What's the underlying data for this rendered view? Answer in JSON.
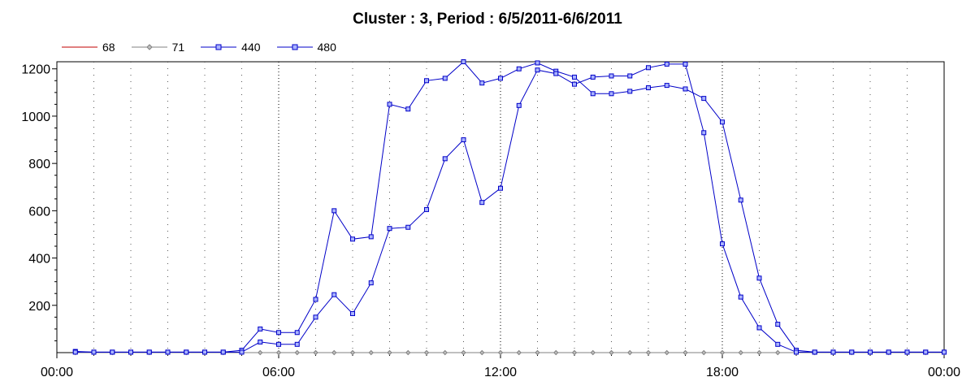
{
  "chart_data": {
    "type": "line",
    "title": "Cluster : 3, Period : 6/5/2011-6/6/2011",
    "xlabel": "",
    "ylabel": "",
    "x_unit": "hours",
    "xlim": [
      0,
      24
    ],
    "ylim": [
      0,
      1230
    ],
    "x_tick_labels": [
      "00:00",
      "06:00",
      "12:00",
      "18:00",
      "00:00"
    ],
    "x_tick_values": [
      0,
      6,
      12,
      18,
      24
    ],
    "y_ticks": [
      200,
      400,
      600,
      800,
      1000,
      1200
    ],
    "grid": true,
    "legend_position": "top-left",
    "series": [
      {
        "name": "68",
        "color": "#c00000",
        "marker": "none",
        "x": [
          0.5,
          1.0,
          1.5,
          2.0,
          2.5,
          3.0,
          3.5,
          4.0,
          4.5,
          5.0,
          5.5,
          6.0,
          6.5,
          7.0,
          7.5,
          8.0,
          8.5,
          9.0,
          9.5,
          10.0,
          10.5,
          11.0,
          11.5,
          12.0,
          12.5,
          13.0,
          13.5,
          14.0,
          14.5,
          15.0,
          15.5,
          16.0,
          16.5,
          17.0,
          17.5,
          18.0,
          18.5,
          19.0,
          19.5,
          20.0,
          20.5,
          21.0,
          21.5,
          22.0,
          22.5,
          23.0,
          23.5,
          24.0
        ],
        "y": [
          0,
          0,
          0,
          0,
          0,
          0,
          0,
          0,
          0,
          0,
          0,
          0,
          0,
          0,
          0,
          0,
          0,
          0,
          0,
          0,
          0,
          0,
          0,
          0,
          0,
          0,
          0,
          0,
          0,
          0,
          0,
          0,
          0,
          0,
          0,
          0,
          0,
          0,
          0,
          0,
          0,
          0,
          0,
          0,
          0,
          0,
          0,
          0
        ]
      },
      {
        "name": "71",
        "color": "#808080",
        "marker": "diamond",
        "x": [
          0.5,
          1.0,
          1.5,
          2.0,
          2.5,
          3.0,
          3.5,
          4.0,
          4.5,
          5.0,
          5.5,
          6.0,
          6.5,
          7.0,
          7.5,
          8.0,
          8.5,
          9.0,
          9.5,
          10.0,
          10.5,
          11.0,
          11.5,
          12.0,
          12.5,
          13.0,
          13.5,
          14.0,
          14.5,
          15.0,
          15.5,
          16.0,
          16.5,
          17.0,
          17.5,
          18.0,
          18.5,
          19.0,
          19.5,
          20.0,
          20.5,
          21.0,
          21.5,
          22.0,
          22.5,
          23.0,
          23.5,
          24.0
        ],
        "y": [
          0,
          0,
          0,
          0,
          0,
          0,
          0,
          0,
          0,
          0,
          0,
          0,
          0,
          0,
          0,
          0,
          0,
          0,
          0,
          0,
          0,
          0,
          0,
          0,
          0,
          0,
          0,
          0,
          0,
          0,
          0,
          0,
          0,
          0,
          0,
          0,
          0,
          0,
          0,
          0,
          0,
          0,
          0,
          0,
          0,
          0,
          0,
          0
        ]
      },
      {
        "name": "440",
        "color": "#0000c8",
        "marker": "square",
        "x": [
          0.5,
          1.0,
          1.5,
          2.0,
          2.5,
          3.0,
          3.5,
          4.0,
          4.5,
          5.0,
          5.5,
          6.0,
          6.5,
          7.0,
          7.5,
          8.0,
          8.5,
          9.0,
          9.5,
          10.0,
          10.5,
          11.0,
          11.5,
          12.0,
          12.5,
          13.0,
          13.5,
          14.0,
          14.5,
          15.0,
          15.5,
          16.0,
          16.5,
          17.0,
          17.5,
          18.0,
          18.5,
          19.0,
          19.5,
          20.0,
          20.5,
          21.0,
          21.5,
          22.0,
          22.5,
          23.0,
          23.5,
          24.0
        ],
        "y": [
          5,
          2,
          2,
          2,
          2,
          2,
          2,
          2,
          2,
          10,
          100,
          85,
          85,
          225,
          600,
          480,
          490,
          1050,
          1030,
          1150,
          1160,
          1230,
          1140,
          1160,
          1200,
          1225,
          1190,
          1165,
          1095,
          1095,
          1105,
          1120,
          1130,
          1115,
          1075,
          975,
          645,
          315,
          120,
          10,
          2,
          2,
          2,
          2,
          2,
          2,
          2,
          2
        ]
      },
      {
        "name": "480",
        "color": "#0000c8",
        "marker": "square",
        "x": [
          0.5,
          1.0,
          1.5,
          2.0,
          2.5,
          3.0,
          3.5,
          4.0,
          4.5,
          5.0,
          5.5,
          6.0,
          6.5,
          7.0,
          7.5,
          8.0,
          8.5,
          9.0,
          9.5,
          10.0,
          10.5,
          11.0,
          11.5,
          12.0,
          12.5,
          13.0,
          13.5,
          14.0,
          14.5,
          15.0,
          15.5,
          16.0,
          16.5,
          17.0,
          17.5,
          18.0,
          18.5,
          19.0,
          19.5,
          20.0,
          20.5,
          21.0,
          21.5,
          22.0,
          22.5,
          23.0,
          23.5,
          24.0
        ],
        "y": [
          2,
          2,
          2,
          2,
          2,
          2,
          2,
          2,
          2,
          2,
          45,
          35,
          35,
          150,
          245,
          165,
          295,
          525,
          530,
          605,
          820,
          900,
          635,
          695,
          1045,
          1195,
          1180,
          1135,
          1165,
          1170,
          1170,
          1205,
          1220,
          1220,
          930,
          460,
          235,
          105,
          35,
          2,
          2,
          2,
          2,
          2,
          2,
          2,
          2,
          2
        ]
      }
    ]
  }
}
